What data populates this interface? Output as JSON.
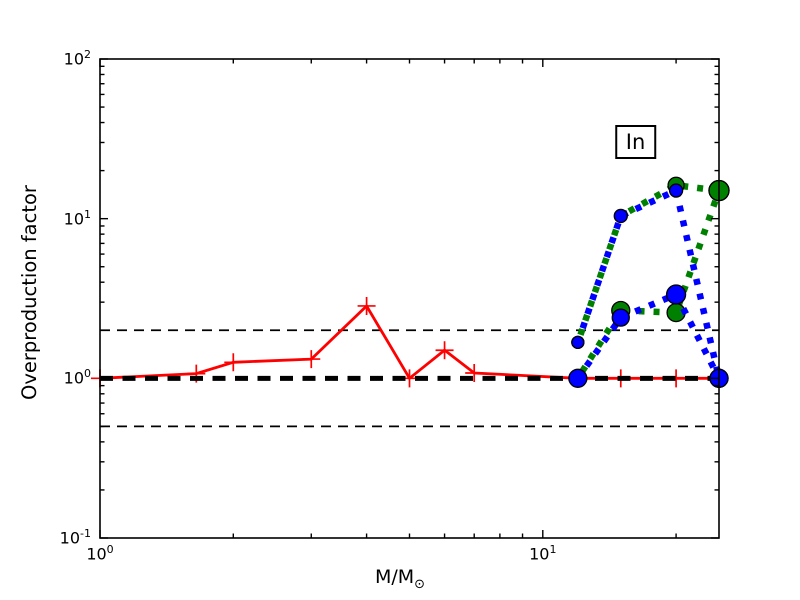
{
  "chart_data": {
    "type": "line",
    "title": "",
    "xlabel_main": "M/M",
    "xlabel_sub": "⊙",
    "ylabel": "Overproduction factor",
    "xscale": "log",
    "yscale": "log",
    "xlim": [
      1,
      25
    ],
    "ylim": [
      0.1,
      100
    ],
    "grid": false,
    "legend": null,
    "annotation": {
      "text": "In",
      "x": 16.2,
      "y": 30
    },
    "x_ticks": [
      {
        "value": 1,
        "base": "10",
        "exp": "0"
      },
      {
        "value": 10,
        "base": "10",
        "exp": "1"
      }
    ],
    "y_ticks": [
      {
        "value": 0.1,
        "base": "10",
        "exp": "-1"
      },
      {
        "value": 1,
        "base": "10",
        "exp": "0"
      },
      {
        "value": 10,
        "base": "10",
        "exp": "1"
      },
      {
        "value": 100,
        "base": "10",
        "exp": "2"
      }
    ],
    "reference_lines": [
      {
        "y": 2.0,
        "color": "#000000",
        "style": "dashed-thin"
      },
      {
        "y": 0.5,
        "color": "#000000",
        "style": "dashed-thin"
      },
      {
        "y": 1.0,
        "color": "#000000",
        "style": "dashed-thick"
      }
    ],
    "series": [
      {
        "name": "red-solid-plus",
        "color": "#ff0000",
        "line": "solid",
        "marker": "plus",
        "x": [
          1,
          1.65,
          2,
          3,
          4,
          5,
          6,
          7,
          12,
          15,
          20,
          25
        ],
        "y": [
          1.0,
          1.07,
          1.26,
          1.32,
          2.84,
          1.0,
          1.5,
          1.08,
          1.0,
          1.0,
          1.0,
          1.0
        ]
      },
      {
        "name": "green-dotted-upper",
        "color": "#008000",
        "line": "dotted",
        "marker": "circle",
        "dash_offset": 7,
        "x": [
          12,
          15,
          20,
          25
        ],
        "y": [
          1.68,
          10.4,
          16.2,
          15.0
        ],
        "marker_sizes": [
          6,
          6,
          8,
          10
        ]
      },
      {
        "name": "green-dotted-lower",
        "color": "#008000",
        "line": "dotted",
        "marker": "circle",
        "dash_offset": 7,
        "x": [
          12,
          15,
          20,
          25
        ],
        "y": [
          1.0,
          2.66,
          2.58,
          15.0
        ],
        "marker_sizes": [
          8,
          9,
          9,
          10
        ]
      },
      {
        "name": "blue-dotted-upper",
        "color": "#0000ff",
        "line": "dotted",
        "marker": "circle",
        "dash_offset": 0,
        "x": [
          12,
          15,
          20,
          25
        ],
        "y": [
          1.68,
          10.4,
          15.0,
          1.0
        ],
        "marker_sizes": [
          6,
          6.5,
          6.5,
          9
        ]
      },
      {
        "name": "blue-dotted-lower",
        "color": "#0000ff",
        "line": "dotted",
        "marker": "circle",
        "dash_offset": 0,
        "x": [
          12,
          15,
          20,
          25
        ],
        "y": [
          1.0,
          2.4,
          3.35,
          1.0
        ],
        "marker_sizes": [
          9,
          8.5,
          9.5,
          9
        ]
      }
    ]
  }
}
